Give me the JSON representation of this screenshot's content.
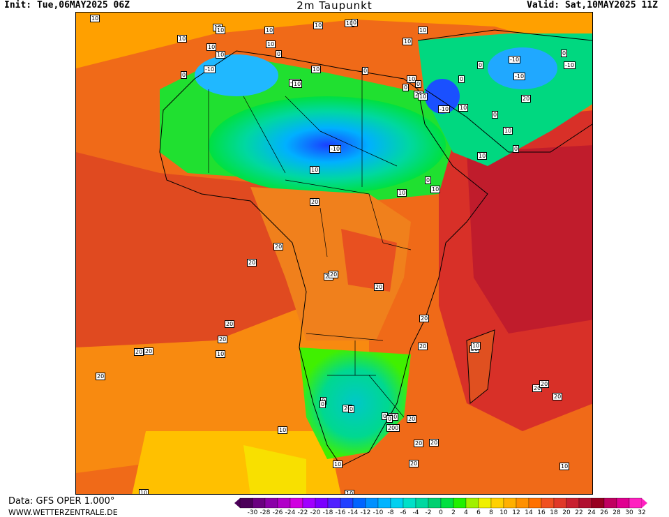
{
  "header": {
    "init": "Init: Tue,06MAY2025 06Z",
    "title": "2m Taupunkt",
    "valid": "Valid: Sat,10MAY2025 11Z"
  },
  "footer": {
    "data_source": "Data: GFS OPER 1.000°",
    "website": "WWW.WETTERZENTRALE.DE"
  },
  "legend": {
    "ticks": [
      "-30",
      "-28",
      "-26",
      "-24",
      "-22",
      "-20",
      "-18",
      "-16",
      "-14",
      "-12",
      "-10",
      "-8",
      "-6",
      "-4",
      "-2",
      "0",
      "2",
      "4",
      "6",
      "8",
      "10",
      "12",
      "14",
      "16",
      "18",
      "20",
      "22",
      "24",
      "26",
      "28",
      "30",
      "32"
    ],
    "colors": [
      "#4b0059",
      "#6a0080",
      "#8a00a8",
      "#b000c8",
      "#d000e0",
      "#a000ff",
      "#7a00ff",
      "#5020ff",
      "#2040ff",
      "#0064ff",
      "#0090ff",
      "#00b4ff",
      "#00d0f0",
      "#00e0c8",
      "#00d8a0",
      "#00d070",
      "#00e040",
      "#20f000",
      "#a0f000",
      "#f0f000",
      "#ffd000",
      "#ffb000",
      "#ff9000",
      "#ff7000",
      "#f05020",
      "#e03828",
      "#c82030",
      "#b01030",
      "#980020",
      "#c00060",
      "#e00090",
      "#ff20c0"
    ]
  },
  "map_labels": [
    {
      "text": "10"
    },
    {
      "text": "10"
    },
    {
      "text": "10"
    },
    {
      "text": "10"
    },
    {
      "text": "10"
    },
    {
      "text": "10"
    },
    {
      "text": "10"
    },
    {
      "text": "10"
    },
    {
      "text": "10"
    },
    {
      "text": "10"
    },
    {
      "text": "10"
    },
    {
      "text": "0"
    },
    {
      "text": "10"
    },
    {
      "text": "0"
    },
    {
      "text": "0"
    },
    {
      "text": "-10"
    },
    {
      "text": "-10"
    },
    {
      "text": "-10"
    },
    {
      "text": "0"
    },
    {
      "text": "-10"
    },
    {
      "text": "10"
    },
    {
      "text": "0"
    },
    {
      "text": "10"
    },
    {
      "text": "20"
    },
    {
      "text": "10"
    },
    {
      "text": "20"
    },
    {
      "text": "0"
    },
    {
      "text": "-10"
    },
    {
      "text": "0"
    },
    {
      "text": "0"
    },
    {
      "text": "-10"
    },
    {
      "text": "-10"
    },
    {
      "text": "10"
    },
    {
      "text": "0"
    },
    {
      "text": "10"
    },
    {
      "text": "10"
    },
    {
      "text": "0"
    },
    {
      "text": "10"
    },
    {
      "text": "0"
    },
    {
      "text": "10"
    },
    {
      "text": "10"
    },
    {
      "text": "0"
    },
    {
      "text": "10"
    },
    {
      "text": "20"
    },
    {
      "text": "20"
    },
    {
      "text": "20"
    },
    {
      "text": "20"
    },
    {
      "text": "20"
    },
    {
      "text": "20"
    },
    {
      "text": "20"
    },
    {
      "text": "20"
    },
    {
      "text": "20"
    },
    {
      "text": "20"
    },
    {
      "text": "10"
    },
    {
      "text": "20"
    },
    {
      "text": "20"
    },
    {
      "text": "20"
    },
    {
      "text": "20"
    },
    {
      "text": "0"
    },
    {
      "text": "20"
    },
    {
      "text": "20"
    },
    {
      "text": "200"
    },
    {
      "text": "0"
    },
    {
      "text": "0"
    },
    {
      "text": "0"
    },
    {
      "text": "0"
    },
    {
      "text": "20"
    },
    {
      "text": "20"
    },
    {
      "text": "20"
    },
    {
      "text": "20"
    },
    {
      "text": "20"
    },
    {
      "text": "20"
    },
    {
      "text": "20"
    },
    {
      "text": "10"
    },
    {
      "text": "10"
    },
    {
      "text": "10"
    },
    {
      "text": "10"
    },
    {
      "text": "10"
    },
    {
      "text": "10"
    }
  ]
}
